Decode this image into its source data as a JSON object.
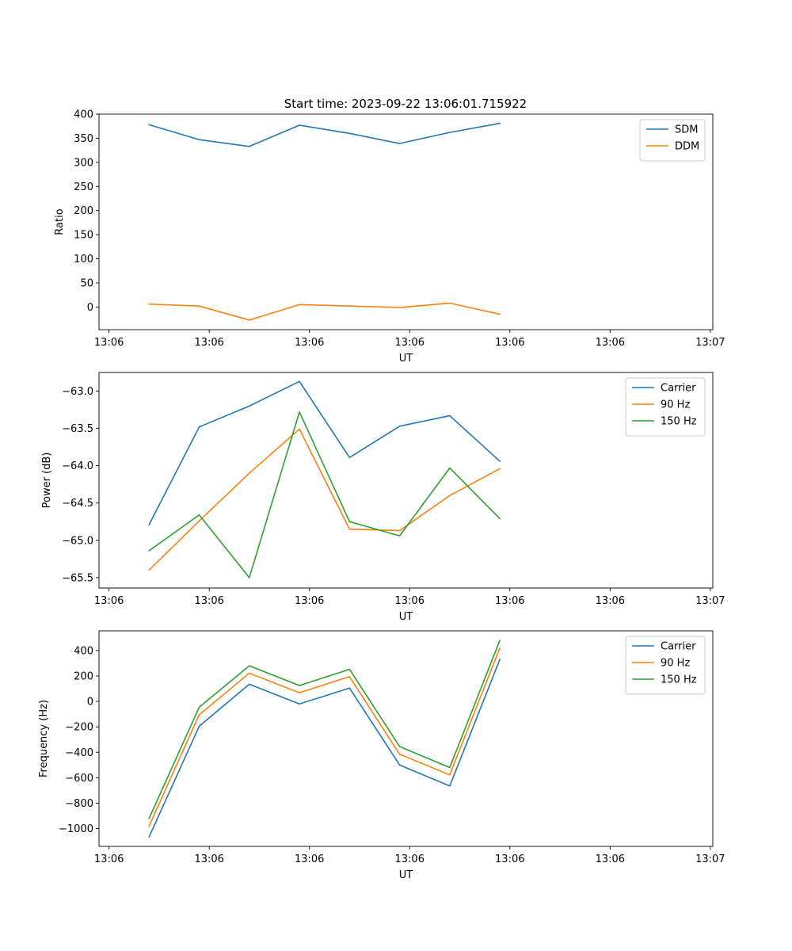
{
  "figure_title": "Start time: 2023-09-22 13:06:01.715922",
  "colors": {
    "blue": "#1f77b4",
    "orange": "#ff7f0e",
    "green": "#2ca02c"
  },
  "chart_data": [
    {
      "type": "line",
      "title": "Start time: 2023-09-22 13:06:01.715922",
      "xlabel": "UT",
      "ylabel": "Ratio",
      "x_tick_labels": [
        "13:06",
        "13:06",
        "13:06",
        "13:06",
        "13:06",
        "13:06",
        "13:07"
      ],
      "x": [
        1,
        2,
        3,
        4,
        5,
        6,
        7,
        8
      ],
      "xlim": [
        0,
        12.25
      ],
      "x_ticks": [
        0.2,
        2.2,
        4.2,
        6.2,
        8.2,
        10.2,
        12.2
      ],
      "ylim": [
        -47,
        400
      ],
      "y_ticks": [
        0,
        50,
        100,
        150,
        200,
        250,
        300,
        350,
        400
      ],
      "y_tick_labels": [
        "0",
        "50",
        "100",
        "150",
        "200",
        "250",
        "300",
        "350",
        "400"
      ],
      "legend": "top-right",
      "series": [
        {
          "name": "SDM",
          "color": "#1f77b4",
          "values": [
            378,
            347,
            333,
            377,
            360,
            339,
            362,
            381
          ]
        },
        {
          "name": "DDM",
          "color": "#ff7f0e",
          "values": [
            6,
            2,
            -27,
            5,
            2,
            -1,
            8,
            -15
          ]
        }
      ]
    },
    {
      "type": "line",
      "title": "",
      "xlabel": "UT",
      "ylabel": "Power (dB)",
      "x_tick_labels": [
        "13:06",
        "13:06",
        "13:06",
        "13:06",
        "13:06",
        "13:06",
        "13:07"
      ],
      "x": [
        1,
        2,
        3,
        4,
        5,
        6,
        7,
        8
      ],
      "xlim": [
        0,
        12.25
      ],
      "x_ticks": [
        0.2,
        2.2,
        4.2,
        6.2,
        8.2,
        10.2,
        12.2
      ],
      "ylim": [
        -65.64,
        -62.75
      ],
      "y_ticks": [
        -65.5,
        -65.0,
        -64.5,
        -64.0,
        -63.5,
        -63.0
      ],
      "y_tick_labels": [
        "−65.5",
        "−65.0",
        "−64.5",
        "−64.0",
        "−63.5",
        "−63.0"
      ],
      "legend": "top-right",
      "series": [
        {
          "name": "Carrier",
          "color": "#1f77b4",
          "values": [
            -64.79,
            -63.48,
            -63.2,
            -62.87,
            -63.89,
            -63.47,
            -63.33,
            -63.94
          ]
        },
        {
          "name": "90 Hz",
          "color": "#ff7f0e",
          "values": [
            -65.4,
            -64.74,
            -64.1,
            -63.51,
            -64.85,
            -64.87,
            -64.4,
            -64.04
          ]
        },
        {
          "name": "150 Hz",
          "color": "#2ca02c",
          "values": [
            -65.14,
            -64.66,
            -65.5,
            -63.28,
            -64.75,
            -64.94,
            -64.03,
            -64.71
          ]
        }
      ]
    },
    {
      "type": "line",
      "title": "",
      "xlabel": "UT",
      "ylabel": "Frequency (Hz)",
      "x_tick_labels": [
        "13:06",
        "13:06",
        "13:06",
        "13:06",
        "13:06",
        "13:06",
        "13:07"
      ],
      "x": [
        1,
        2,
        3,
        4,
        5,
        6,
        7,
        8
      ],
      "xlim": [
        0,
        12.25
      ],
      "x_ticks": [
        0.2,
        2.2,
        4.2,
        6.2,
        8.2,
        10.2,
        12.2
      ],
      "ylim": [
        -1140,
        555
      ],
      "y_ticks": [
        -1000,
        -800,
        -600,
        -400,
        -200,
        0,
        200,
        400
      ],
      "y_tick_labels": [
        "−1000",
        "−800",
        "−600",
        "−400",
        "−200",
        "0",
        "200",
        "400"
      ],
      "legend": "top-right",
      "series": [
        {
          "name": "Carrier",
          "color": "#1f77b4",
          "values": [
            -1065,
            -195,
            135,
            -20,
            105,
            -500,
            -665,
            330
          ]
        },
        {
          "name": "90 Hz",
          "color": "#ff7f0e",
          "values": [
            -980,
            -105,
            222,
            68,
            195,
            -415,
            -578,
            420
          ]
        },
        {
          "name": "150 Hz",
          "color": "#2ca02c",
          "values": [
            -920,
            -45,
            280,
            125,
            252,
            -355,
            -520,
            480
          ]
        }
      ]
    }
  ]
}
